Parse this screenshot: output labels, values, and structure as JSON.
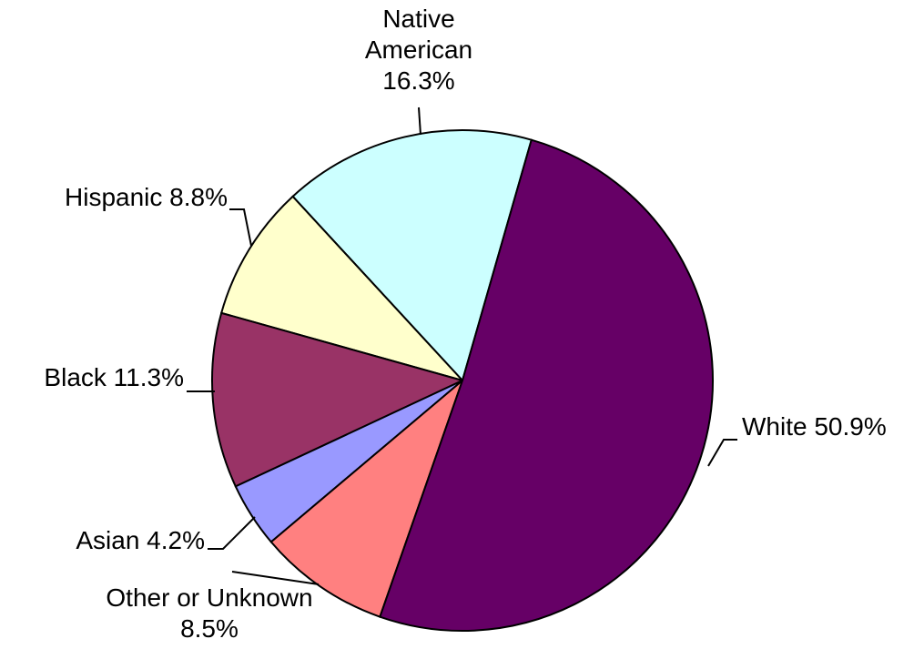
{
  "chart_data": {
    "type": "pie",
    "categories": [
      "White",
      "Other or Unknown",
      "Asian",
      "Black",
      "Hispanic",
      "Native American"
    ],
    "values": [
      50.9,
      8.5,
      4.2,
      11.3,
      8.8,
      16.3
    ],
    "value_labels": [
      "50.9%",
      "8.5%",
      "4.2%",
      "11.3%",
      "8.8%",
      "16.3%"
    ],
    "colors": [
      "#660066",
      "#ff8080",
      "#9999ff",
      "#993366",
      "#ffffcc",
      "#ccffff"
    ]
  }
}
